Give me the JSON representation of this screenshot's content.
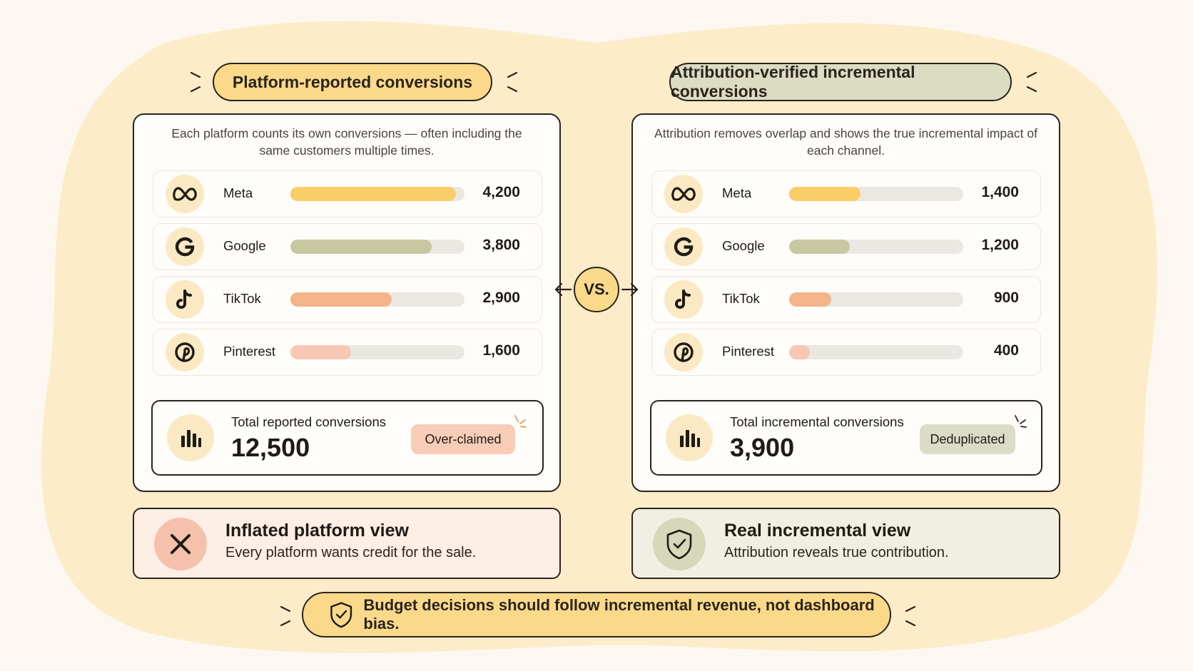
{
  "colors": {
    "background": "#fcf8f1",
    "blob": "#fcecc9",
    "accent_yellow": "#fad98a",
    "accent_olive": "#dcdcc3",
    "meta": "#f9cd68",
    "google": "#c7c8a1",
    "tiktok": "#f4b388",
    "pinterest": "#f8c8b5",
    "track": "#ebe8e3",
    "outline": "#2a241c"
  },
  "left": {
    "heading": "Platform-reported conversions",
    "description": "Each platform counts its own conversions — often including the same customers multiple times.",
    "rows": [
      {
        "name": "Meta",
        "value": "4,200",
        "fill_fraction": 0.95,
        "icon": "meta-icon",
        "color": "#f9cd68"
      },
      {
        "name": "Google",
        "value": "3,800",
        "fill_fraction": 0.81,
        "icon": "google-icon",
        "color": "#c7c8a1"
      },
      {
        "name": "TikTok",
        "value": "2,900",
        "fill_fraction": 0.58,
        "icon": "tiktok-icon",
        "color": "#f4b388"
      },
      {
        "name": "Pinterest",
        "value": "1,600",
        "fill_fraction": 0.35,
        "icon": "pinterest-icon",
        "color": "#f8c8b5"
      }
    ],
    "total": {
      "label": "Total reported conversions",
      "value": "12,500",
      "badge": "Over-claimed"
    },
    "note": {
      "title": "Inflated platform view",
      "subtitle": "Every platform wants credit for the sale.",
      "icon": "x-icon"
    }
  },
  "right": {
    "heading": "Attribution-verified incremental conversions",
    "description": "Attribution removes overlap and shows the true incremental impact of each channel.",
    "rows": [
      {
        "name": "Meta",
        "value": "1,400",
        "fill_fraction": 0.41,
        "icon": "meta-icon",
        "color": "#f9cd68"
      },
      {
        "name": "Google",
        "value": "1,200",
        "fill_fraction": 0.35,
        "icon": "google-icon",
        "color": "#c7c8a1"
      },
      {
        "name": "TikTok",
        "value": "900",
        "fill_fraction": 0.24,
        "icon": "tiktok-icon",
        "color": "#f4b388"
      },
      {
        "name": "Pinterest",
        "value": "400",
        "fill_fraction": 0.12,
        "icon": "pinterest-icon",
        "color": "#f8c8b5"
      }
    ],
    "total": {
      "label": "Total incremental conversions",
      "value": "3,900",
      "badge": "Deduplicated"
    },
    "note": {
      "title": "Real incremental view",
      "subtitle": "Attribution reveals true contribution.",
      "icon": "shield-check-icon"
    }
  },
  "vs_label": "VS.",
  "footer": {
    "text": "Budget decisions should follow incremental revenue, not dashboard bias.",
    "icon": "shield-check-icon"
  }
}
